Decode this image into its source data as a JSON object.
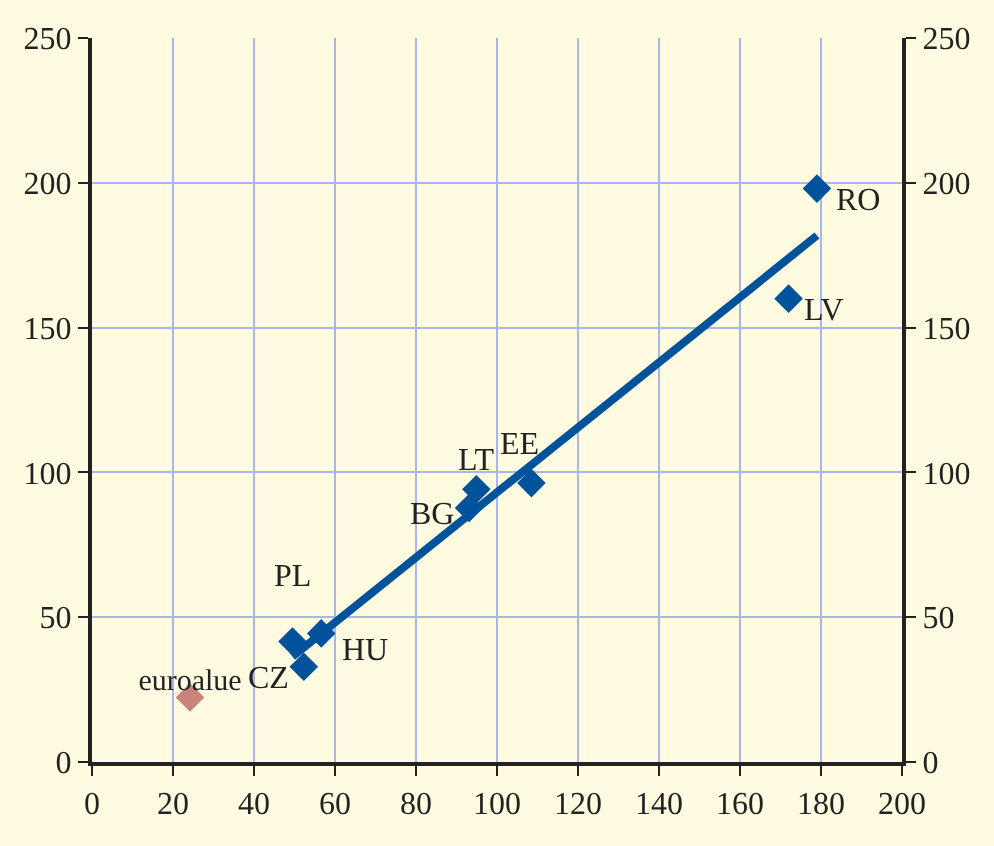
{
  "chart_data": {
    "type": "scatter",
    "marker": "diamond",
    "grid": true,
    "xlim": [
      0,
      200
    ],
    "xticks": [
      0,
      20,
      40,
      60,
      80,
      100,
      120,
      140,
      160,
      180,
      200
    ],
    "ylim": [
      0,
      250
    ],
    "yticks": [
      0,
      50,
      100,
      150,
      200,
      250
    ],
    "y2lim": [
      0,
      250
    ],
    "y2ticks": [
      0,
      50,
      100,
      150,
      200,
      250
    ],
    "series": [
      {
        "color": "#00529b",
        "x": [
          49.5,
          52.3,
          56.6,
          93.1,
          94.9,
          108.5,
          172,
          179
        ],
        "values": [
          41.6,
          32.9,
          44.4,
          87.7,
          94.2,
          96.3,
          160,
          198
        ]
      },
      {
        "name": "euroalue",
        "color": "#c8837a",
        "x": [
          24.2
        ],
        "values": [
          22.3
        ]
      },
      {
        "type": "line",
        "marker": "none",
        "color": "#00529b",
        "x": [
          49.5,
          179
        ],
        "values": [
          36.4,
          181.8
        ]
      }
    ],
    "annotations": [
      {
        "text": "PL",
        "x": 49.5,
        "y": 41.6
      },
      {
        "text": "CZ",
        "x": 52.3,
        "y": 32.9
      },
      {
        "text": "HU",
        "x": 56.6,
        "y": 44.4
      },
      {
        "text": "BG",
        "x": 93.1,
        "y": 87.7
      },
      {
        "text": "LT",
        "x": 94.9,
        "y": 94.2
      },
      {
        "text": "EE",
        "x": 108.5,
        "y": 96.3
      },
      {
        "text": "LV",
        "x": 172,
        "y": 160
      },
      {
        "text": "RO",
        "x": 179,
        "y": 198
      }
    ]
  }
}
